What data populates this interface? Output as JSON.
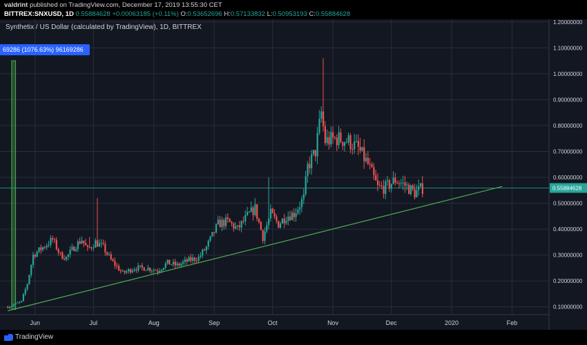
{
  "header": {
    "author": "valdrint",
    "published_text": "published on TradingView.com, December 17, 2019 13:55:30 CET",
    "symbol": "BITTREX:SNXUSD, 1D",
    "last_value": "0.55884628",
    "change": "+0.00063185 (+0.11%)",
    "open_label": "O:",
    "open": "0.53652696",
    "high_label": "H:",
    "high": "0.57133832",
    "low_label": "L:",
    "low": "0.50953193",
    "close_label": "C:",
    "close": "0.55884628"
  },
  "footer": {
    "brand": "TradingView"
  },
  "colors": {
    "background": "#131722",
    "grid": "#2a2e39",
    "up": "#26a69a",
    "down": "#ef5350",
    "trendline": "#4caf50",
    "price_line": "#26a69a",
    "measure": "#4caf50",
    "measure_label": "#2962ff"
  },
  "chart_data": {
    "type": "candlestick",
    "title": "Synthetix / US Dollar (calculated by TradingView), 1D, BITTREX",
    "y_ticks": [
      0.1,
      0.2,
      0.3,
      0.4,
      0.5,
      0.6,
      0.7,
      0.8,
      0.9,
      1.0,
      1.1,
      1.2
    ],
    "y_tick_labels": [
      "0.10000000",
      "0.20000000",
      "0.30000000",
      "0.40000000",
      "0.50000000",
      "0.60000000",
      "0.70000000",
      "0.80000000",
      "0.90000000",
      "1.00000000",
      "1.10000000",
      "1.20000000"
    ],
    "ylim": [
      0.07,
      1.21
    ],
    "xlim": [
      "2019-05-14",
      "2020-02-20"
    ],
    "x_ticks": [
      {
        "date": "2019-06-01",
        "label": "Jun"
      },
      {
        "date": "2019-07-01",
        "label": "Jul"
      },
      {
        "date": "2019-08-01",
        "label": "Aug"
      },
      {
        "date": "2019-09-01",
        "label": "Sep"
      },
      {
        "date": "2019-10-01",
        "label": "Oct"
      },
      {
        "date": "2019-11-01",
        "label": "Nov"
      },
      {
        "date": "2019-12-01",
        "label": "Dec"
      },
      {
        "date": "2020-01-01",
        "label": "2020"
      },
      {
        "date": "2020-02-01",
        "label": "Feb"
      }
    ],
    "grid": true,
    "last_price": 0.55884628,
    "last_price_label": "0.55884628",
    "price_path": [
      {
        "date": "2019-05-18",
        "close": 0.1
      },
      {
        "date": "2019-05-25",
        "close": 0.12
      },
      {
        "date": "2019-05-28",
        "close": 0.19
      },
      {
        "date": "2019-05-31",
        "close": 0.3
      },
      {
        "date": "2019-06-05",
        "close": 0.33
      },
      {
        "date": "2019-06-10",
        "close": 0.36
      },
      {
        "date": "2019-06-14",
        "close": 0.3
      },
      {
        "date": "2019-06-17",
        "close": 0.29
      },
      {
        "date": "2019-06-21",
        "close": 0.33
      },
      {
        "date": "2019-06-25",
        "close": 0.36
      },
      {
        "date": "2019-06-28",
        "close": 0.32
      },
      {
        "date": "2019-07-02",
        "close": 0.35
      },
      {
        "date": "2019-07-06",
        "close": 0.33
      },
      {
        "date": "2019-07-10",
        "close": 0.28
      },
      {
        "date": "2019-07-16",
        "close": 0.23
      },
      {
        "date": "2019-07-22",
        "close": 0.25
      },
      {
        "date": "2019-07-28",
        "close": 0.25
      },
      {
        "date": "2019-08-03",
        "close": 0.24
      },
      {
        "date": "2019-08-08",
        "close": 0.27
      },
      {
        "date": "2019-08-13",
        "close": 0.26
      },
      {
        "date": "2019-08-19",
        "close": 0.28
      },
      {
        "date": "2019-08-24",
        "close": 0.29
      },
      {
        "date": "2019-08-28",
        "close": 0.33
      },
      {
        "date": "2019-09-03",
        "close": 0.42
      },
      {
        "date": "2019-09-08",
        "close": 0.43
      },
      {
        "date": "2019-09-13",
        "close": 0.4
      },
      {
        "date": "2019-09-18",
        "close": 0.45
      },
      {
        "date": "2019-09-22",
        "close": 0.48
      },
      {
        "date": "2019-09-26",
        "close": 0.37
      },
      {
        "date": "2019-09-30",
        "close": 0.46
      },
      {
        "date": "2019-10-04",
        "close": 0.42
      },
      {
        "date": "2019-10-08",
        "close": 0.45
      },
      {
        "date": "2019-10-12",
        "close": 0.46
      },
      {
        "date": "2019-10-17",
        "close": 0.52
      },
      {
        "date": "2019-10-19",
        "close": 0.64
      },
      {
        "date": "2019-10-23",
        "close": 0.7
      },
      {
        "date": "2019-10-26",
        "close": 0.85
      },
      {
        "date": "2019-10-28",
        "close": 0.74
      },
      {
        "date": "2019-11-03",
        "close": 0.75
      },
      {
        "date": "2019-11-09",
        "close": 0.74
      },
      {
        "date": "2019-11-14",
        "close": 0.71
      },
      {
        "date": "2019-11-19",
        "close": 0.65
      },
      {
        "date": "2019-11-24",
        "close": 0.56
      },
      {
        "date": "2019-11-28",
        "close": 0.56
      },
      {
        "date": "2019-12-03",
        "close": 0.59
      },
      {
        "date": "2019-12-08",
        "close": 0.57
      },
      {
        "date": "2019-12-13",
        "close": 0.54
      },
      {
        "date": "2019-12-17",
        "close": 0.5588
      }
    ],
    "spikes": [
      {
        "date": "2019-06-29",
        "high": 0.37
      },
      {
        "date": "2019-07-03",
        "high": 0.52
      },
      {
        "date": "2019-09-29",
        "high": 0.6
      },
      {
        "date": "2019-10-27",
        "high": 1.06
      }
    ],
    "trendline": [
      {
        "date": "2019-05-18",
        "value": 0.085
      },
      {
        "date": "2020-01-27",
        "value": 0.565
      }
    ],
    "measure": {
      "start_date": "2019-05-20",
      "end_date": "2019-05-22",
      "low": 0.09,
      "high": 1.05,
      "label": "69286 (1076.63%) 96169286"
    }
  }
}
